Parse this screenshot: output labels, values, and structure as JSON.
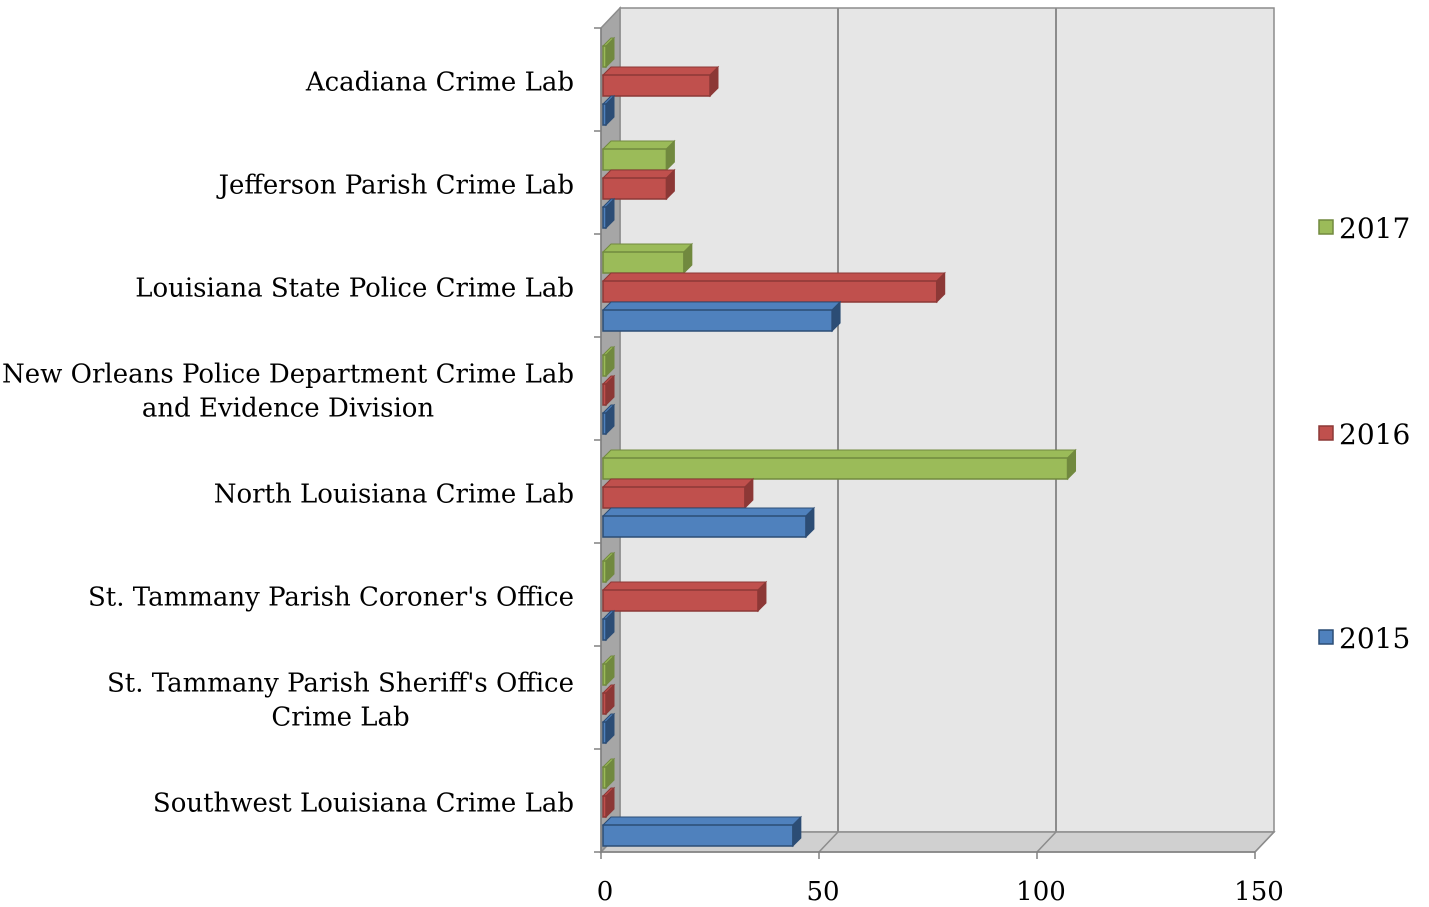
{
  "chart_data": {
    "type": "bar",
    "orientation": "horizontal",
    "three_d": true,
    "categories": [
      [
        "Acadiana Crime Lab"
      ],
      [
        "Jefferson Parish Crime Lab"
      ],
      [
        "Louisiana State Police Crime Lab"
      ],
      [
        "New Orleans Police Department Crime Lab",
        "and Evidence Division"
      ],
      [
        "North Louisiana Crime Lab"
      ],
      [
        "St. Tammany Parish Coroner's Office"
      ],
      [
        "St. Tammany Parish Sheriff's Office",
        "Crime Lab"
      ],
      [
        "Southwest Louisiana Crime Lab"
      ]
    ],
    "series": [
      {
        "name": "2015",
        "color": "#4F81BD",
        "dark": "#2C4D75",
        "values": [
          0,
          0,
          53,
          0,
          47,
          0,
          0,
          44
        ]
      },
      {
        "name": "2016",
        "color": "#C0504D",
        "dark": "#8C3836",
        "values": [
          25,
          15,
          77,
          0,
          33,
          36,
          0,
          0
        ]
      },
      {
        "name": "2017",
        "color": "#9BBB59",
        "dark": "#71893F",
        "values": [
          1,
          15,
          19,
          0,
          107,
          0,
          0,
          0
        ]
      }
    ],
    "xlim": [
      0,
      150
    ],
    "xticks": [
      "0",
      "50",
      "100",
      "150"
    ],
    "grid": true,
    "legend_position": "right",
    "legend_order": [
      "2017",
      "2016",
      "2015"
    ],
    "title": "",
    "xlabel": "",
    "ylabel": ""
  }
}
